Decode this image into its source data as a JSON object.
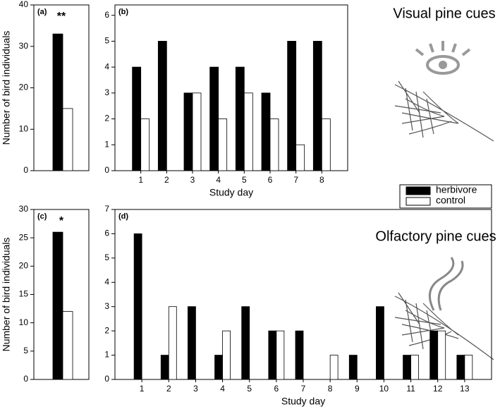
{
  "chart_data": [
    {
      "type": "bar",
      "panel": "(a)",
      "annotation": "**",
      "ylabel": "Number of bird individuals",
      "categories": [
        null
      ],
      "ylim": [
        0,
        40
      ],
      "yticks": [
        0,
        10,
        20,
        30,
        40
      ],
      "series": [
        {
          "color": "#000000",
          "values": [
            33
          ]
        },
        {
          "color": "#ffffff",
          "values": [
            15
          ]
        }
      ]
    },
    {
      "type": "bar",
      "panel": "(b)",
      "xlabel": "Study day",
      "categories": [
        "1",
        "2",
        "3",
        "4",
        "5",
        "6",
        "7",
        "8"
      ],
      "ylim": [
        0,
        6.4
      ],
      "yticks": [
        0,
        1,
        2,
        3,
        4,
        5,
        6
      ],
      "series": [
        {
          "name": "herbivore",
          "color": "#000000",
          "values": [
            4,
            5,
            3,
            4,
            4,
            3,
            5,
            5
          ]
        },
        {
          "name": "control",
          "color": "#ffffff",
          "values": [
            2,
            0,
            3,
            2,
            3,
            2,
            1,
            2
          ]
        }
      ]
    },
    {
      "type": "bar",
      "panel": "(c)",
      "annotation": "*",
      "ylabel": "Number of bird individuals",
      "categories": [
        null
      ],
      "ylim": [
        0,
        30
      ],
      "yticks": [
        0,
        5,
        10,
        15,
        20,
        25,
        30
      ],
      "series": [
        {
          "color": "#000000",
          "values": [
            26
          ]
        },
        {
          "color": "#ffffff",
          "values": [
            12
          ]
        }
      ]
    },
    {
      "type": "bar",
      "panel": "(d)",
      "xlabel": "Study day",
      "categories": [
        "1",
        "2",
        "3",
        "4",
        "5",
        "6",
        "7",
        "8",
        "9",
        "10",
        "11",
        "12",
        "13"
      ],
      "ylim": [
        0,
        7
      ],
      "yticks": [
        0,
        1,
        2,
        3,
        4,
        5,
        6,
        7
      ],
      "series": [
        {
          "color": "#000000",
          "values": [
            6,
            1,
            3,
            1,
            3,
            2,
            2,
            0,
            1,
            3,
            1,
            2,
            1
          ]
        },
        {
          "color": "#ffffff",
          "values": [
            0,
            3,
            0,
            2,
            0,
            2,
            0,
            1,
            0,
            0,
            1,
            2,
            1
          ]
        }
      ]
    }
  ],
  "side_labels": [
    "Visual pine cues",
    "Olfactory pine cues"
  ]
}
